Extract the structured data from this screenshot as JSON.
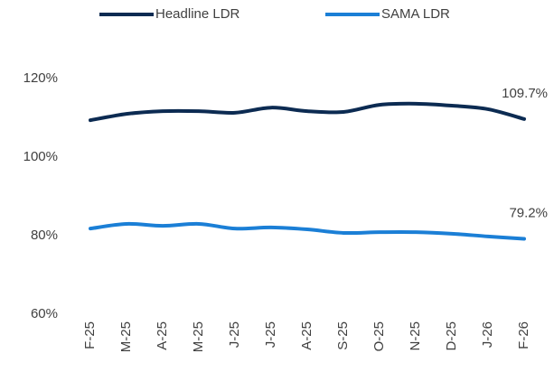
{
  "chart_data": {
    "type": "line",
    "categories": [
      "F-25",
      "M-25",
      "A-25",
      "M-25",
      "J-25",
      "J-25",
      "A-25",
      "S-25",
      "O-25",
      "N-25",
      "D-25",
      "J-26",
      "F-26"
    ],
    "series": [
      {
        "name": "Headline LDR",
        "color": "#0c2b52",
        "values": [
          109.4,
          111.0,
          111.7,
          111.7,
          111.3,
          112.6,
          111.7,
          111.5,
          113.3,
          113.6,
          113.1,
          112.2,
          109.7
        ],
        "value_labels": [
          null,
          null,
          null,
          null,
          null,
          null,
          null,
          null,
          null,
          null,
          null,
          null,
          "109.7%"
        ]
      },
      {
        "name": "SAMA LDR",
        "color": "#1b7fd6",
        "values": [
          81.8,
          83.0,
          82.5,
          83.0,
          81.8,
          82.1,
          81.6,
          80.7,
          80.9,
          80.9,
          80.5,
          79.8,
          79.2
        ],
        "value_labels": [
          null,
          null,
          null,
          null,
          null,
          null,
          null,
          null,
          null,
          null,
          null,
          null,
          "79.2%"
        ]
      }
    ],
    "ylim": [
      60,
      120
    ],
    "yticks": [
      {
        "value": 60,
        "label": "60%"
      },
      {
        "value": 80,
        "label": "80%"
      },
      {
        "value": 100,
        "label": "100%"
      },
      {
        "value": 120,
        "label": "120%"
      }
    ],
    "grid": false,
    "legend": "top"
  }
}
